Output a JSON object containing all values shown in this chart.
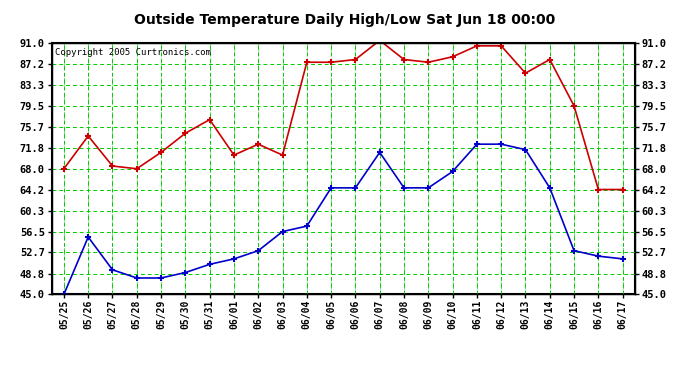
{
  "title": "Outside Temperature Daily High/Low Sat Jun 18 00:00",
  "copyright": "Copyright 2005 Curtronics.com",
  "x_labels": [
    "05/25",
    "05/26",
    "05/27",
    "05/28",
    "05/29",
    "05/30",
    "05/31",
    "06/01",
    "06/02",
    "06/03",
    "06/04",
    "06/05",
    "06/06",
    "06/07",
    "06/08",
    "06/09",
    "06/10",
    "06/11",
    "06/12",
    "06/13",
    "06/14",
    "06/15",
    "06/16",
    "06/17"
  ],
  "high_values": [
    68.0,
    74.0,
    68.5,
    68.0,
    71.0,
    74.5,
    77.0,
    70.5,
    72.5,
    70.5,
    87.5,
    87.5,
    88.0,
    91.5,
    88.0,
    87.5,
    88.5,
    90.5,
    90.5,
    85.5,
    88.0,
    79.5,
    64.2,
    64.2
  ],
  "low_values": [
    45.0,
    55.5,
    49.5,
    48.0,
    48.0,
    49.0,
    50.5,
    51.5,
    53.0,
    56.5,
    57.5,
    64.5,
    64.5,
    71.0,
    64.5,
    64.5,
    67.5,
    72.5,
    72.5,
    71.5,
    64.5,
    53.0,
    52.0,
    51.5
  ],
  "high_color": "#cc0000",
  "low_color": "#0000cc",
  "bg_color": "#ffffff",
  "grid_color": "#00cc00",
  "ytick_labels": [
    "45.0",
    "48.8",
    "52.7",
    "56.5",
    "60.3",
    "64.2",
    "68.0",
    "71.8",
    "75.7",
    "79.5",
    "83.3",
    "87.2",
    "91.0"
  ],
  "ytick_values": [
    45.0,
    48.8,
    52.7,
    56.5,
    60.3,
    64.2,
    68.0,
    71.8,
    75.7,
    79.5,
    83.3,
    87.2,
    91.0
  ],
  "ymin": 45.0,
  "ymax": 91.0
}
